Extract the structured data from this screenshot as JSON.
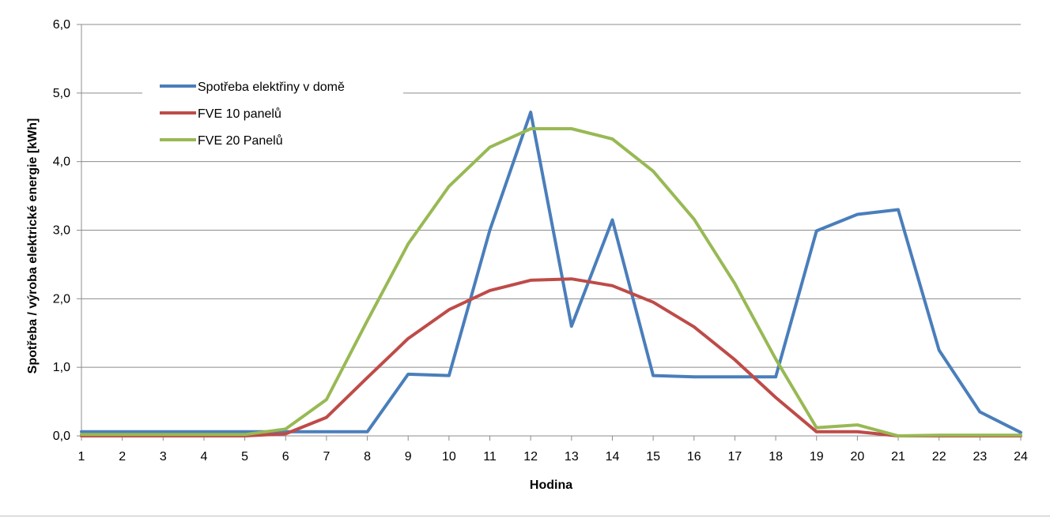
{
  "chart_data": {
    "type": "line",
    "title": "",
    "xlabel": "Hodina",
    "ylabel": "Spotřeba / výroba elektrické energie [kWh]",
    "x": [
      1,
      2,
      3,
      4,
      5,
      6,
      7,
      8,
      9,
      10,
      11,
      12,
      13,
      14,
      15,
      16,
      17,
      18,
      19,
      20,
      21,
      22,
      23,
      24
    ],
    "x_tick_labels": [
      "1",
      "2",
      "3",
      "4",
      "5",
      "6",
      "7",
      "8",
      "9",
      "10",
      "11",
      "12",
      "13",
      "14",
      "15",
      "16",
      "17",
      "18",
      "19",
      "20",
      "21",
      "22",
      "23",
      "24"
    ],
    "ylim": [
      0,
      6
    ],
    "y_ticks": [
      0,
      1,
      2,
      3,
      4,
      5,
      6
    ],
    "y_tick_labels": [
      "0,0",
      "1,0",
      "2,0",
      "3,0",
      "4,0",
      "5,0",
      "6,0"
    ],
    "grid": "horizontal",
    "legend_position": "top-left",
    "series": [
      {
        "name": "Spotřeba elektřiny v domě",
        "color": "#4a7ebb",
        "values": [
          0.06,
          0.06,
          0.06,
          0.06,
          0.06,
          0.06,
          0.06,
          0.06,
          0.9,
          0.88,
          3.0,
          4.72,
          1.6,
          3.15,
          0.88,
          0.86,
          0.86,
          0.86,
          2.99,
          3.23,
          3.3,
          1.25,
          0.35,
          0.05
        ]
      },
      {
        "name": "FVE 10 panelů",
        "color": "#be4b48",
        "values": [
          0.0,
          0.0,
          0.0,
          0.0,
          0.0,
          0.03,
          0.27,
          0.85,
          1.42,
          1.84,
          2.12,
          2.27,
          2.29,
          2.19,
          1.95,
          1.59,
          1.11,
          0.56,
          0.06,
          0.06,
          0.0,
          0.0,
          0.0,
          0.0
        ]
      },
      {
        "name": "FVE 20 Panelů",
        "color": "#98b954",
        "values": [
          0.02,
          0.02,
          0.02,
          0.02,
          0.02,
          0.1,
          0.53,
          1.68,
          2.8,
          3.64,
          4.21,
          4.48,
          4.48,
          4.33,
          3.86,
          3.16,
          2.22,
          1.12,
          0.12,
          0.16,
          0.0,
          0.01,
          0.01,
          0.01
        ]
      }
    ]
  }
}
